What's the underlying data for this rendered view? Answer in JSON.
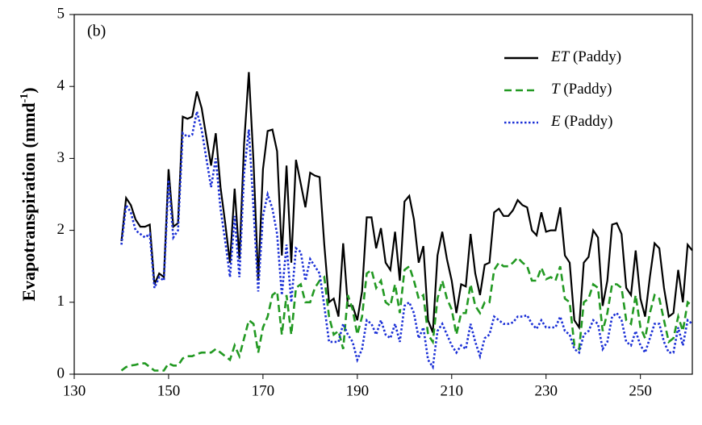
{
  "chart_data": {
    "type": "line",
    "annotation": "(b)",
    "y_label": {
      "text": "Evapotranspiration  (mmd",
      "sup": "-1",
      "end": ")"
    },
    "x": [
      140,
      141,
      142,
      143,
      144,
      145,
      146,
      147,
      148,
      149,
      150,
      151,
      152,
      153,
      154,
      155,
      156,
      157,
      158,
      159,
      160,
      161,
      162,
      163,
      164,
      165,
      166,
      167,
      168,
      169,
      170,
      171,
      172,
      173,
      174,
      175,
      176,
      177,
      178,
      179,
      180,
      181,
      182,
      183,
      184,
      185,
      186,
      187,
      188,
      189,
      190,
      191,
      192,
      193,
      194,
      195,
      196,
      197,
      198,
      199,
      200,
      201,
      202,
      203,
      204,
      205,
      206,
      207,
      208,
      209,
      210,
      211,
      212,
      213,
      214,
      215,
      216,
      217,
      218,
      219,
      220,
      221,
      222,
      223,
      224,
      225,
      226,
      227,
      228,
      229,
      230,
      231,
      232,
      233,
      234,
      235,
      236,
      237,
      238,
      239,
      240,
      241,
      242,
      243,
      244,
      245,
      246,
      247,
      248,
      249,
      250,
      251,
      252,
      253,
      254,
      255,
      256,
      257,
      258,
      259,
      260,
      261
    ],
    "series": [
      {
        "name": "ET (Paddy)",
        "color": "#000000",
        "dash": "solid",
        "values": [
          1.85,
          2.45,
          2.35,
          2.15,
          2.05,
          2.05,
          2.08,
          1.25,
          1.4,
          1.35,
          2.85,
          2.05,
          2.1,
          3.58,
          3.55,
          3.58,
          3.93,
          3.7,
          3.3,
          2.9,
          3.35,
          2.6,
          2.1,
          1.55,
          2.58,
          1.6,
          3.2,
          4.2,
          2.95,
          1.3,
          2.85,
          3.38,
          3.4,
          3.1,
          1.65,
          2.9,
          1.55,
          2.98,
          2.65,
          2.32,
          2.8,
          2.76,
          2.74,
          1.8,
          1.0,
          1.05,
          0.8,
          1.82,
          0.95,
          0.95,
          0.75,
          1.15,
          2.18,
          2.18,
          1.75,
          2.03,
          1.55,
          1.45,
          1.98,
          1.3,
          2.4,
          2.48,
          2.15,
          1.55,
          1.78,
          0.75,
          0.58,
          1.65,
          1.98,
          1.6,
          1.3,
          0.85,
          1.25,
          1.22,
          1.95,
          1.4,
          1.1,
          1.52,
          1.55,
          2.25,
          2.3,
          2.2,
          2.2,
          2.28,
          2.42,
          2.35,
          2.32,
          2.0,
          1.93,
          2.25,
          1.98,
          2.0,
          2.0,
          2.32,
          1.65,
          1.55,
          0.75,
          0.65,
          1.55,
          1.63,
          2.0,
          1.9,
          0.95,
          1.3,
          2.08,
          2.1,
          1.95,
          1.2,
          1.1,
          1.72,
          1.05,
          0.8,
          1.35,
          1.82,
          1.75,
          1.2,
          0.8,
          0.85,
          1.45,
          1.0,
          1.8,
          1.72
        ]
      },
      {
        "name": "T (Paddy)",
        "color": "#229922",
        "dash": "dashed",
        "values": [
          0.05,
          0.1,
          0.12,
          0.13,
          0.15,
          0.15,
          0.1,
          0.05,
          0.05,
          0.05,
          0.15,
          0.12,
          0.12,
          0.22,
          0.25,
          0.25,
          0.28,
          0.3,
          0.3,
          0.3,
          0.35,
          0.3,
          0.25,
          0.2,
          0.4,
          0.25,
          0.5,
          0.75,
          0.7,
          0.3,
          0.65,
          0.8,
          1.1,
          1.15,
          0.55,
          1.1,
          0.55,
          1.2,
          1.25,
          1.0,
          1.0,
          1.2,
          1.3,
          1.35,
          0.8,
          0.55,
          0.6,
          0.35,
          1.1,
          0.9,
          0.55,
          0.8,
          1.4,
          1.45,
          1.2,
          1.3,
          1.0,
          0.95,
          1.25,
          0.85,
          1.45,
          1.5,
          1.3,
          1.05,
          1.1,
          0.55,
          0.45,
          1.05,
          1.3,
          1.05,
          0.9,
          0.55,
          0.85,
          0.85,
          1.25,
          0.95,
          0.85,
          1.0,
          1.0,
          1.45,
          1.55,
          1.5,
          1.5,
          1.55,
          1.62,
          1.55,
          1.5,
          1.3,
          1.3,
          1.48,
          1.32,
          1.35,
          1.3,
          1.5,
          1.05,
          1.0,
          0.4,
          0.35,
          1.0,
          1.05,
          1.25,
          1.2,
          0.6,
          0.85,
          1.25,
          1.25,
          1.2,
          0.75,
          0.7,
          1.1,
          0.65,
          0.5,
          0.85,
          1.1,
          1.05,
          0.75,
          0.45,
          0.5,
          0.8,
          0.6,
          1.0,
          0.95
        ]
      },
      {
        "name": "E (Paddy)",
        "color": "#1a2fd6",
        "dash": "dotted",
        "values": [
          1.8,
          2.35,
          2.25,
          2.0,
          1.95,
          1.9,
          1.95,
          1.2,
          1.35,
          1.3,
          2.7,
          1.9,
          2.0,
          3.35,
          3.3,
          3.33,
          3.65,
          3.4,
          3.0,
          2.6,
          3.0,
          2.3,
          1.85,
          1.35,
          2.2,
          1.35,
          2.8,
          3.4,
          2.3,
          1.15,
          2.2,
          2.5,
          2.3,
          1.95,
          1.1,
          1.8,
          1.0,
          1.75,
          1.7,
          1.3,
          1.6,
          1.5,
          1.4,
          0.95,
          0.45,
          0.45,
          0.45,
          0.7,
          0.55,
          0.45,
          0.2,
          0.35,
          0.75,
          0.7,
          0.55,
          0.75,
          0.55,
          0.5,
          0.7,
          0.45,
          0.95,
          1.0,
          0.85,
          0.5,
          0.65,
          0.2,
          0.1,
          0.6,
          0.7,
          0.55,
          0.4,
          0.3,
          0.4,
          0.35,
          0.7,
          0.45,
          0.25,
          0.5,
          0.55,
          0.8,
          0.75,
          0.7,
          0.7,
          0.72,
          0.8,
          0.8,
          0.82,
          0.7,
          0.63,
          0.75,
          0.65,
          0.65,
          0.65,
          0.8,
          0.6,
          0.55,
          0.35,
          0.3,
          0.55,
          0.6,
          0.75,
          0.7,
          0.35,
          0.45,
          0.8,
          0.85,
          0.75,
          0.45,
          0.4,
          0.6,
          0.4,
          0.3,
          0.5,
          0.7,
          0.7,
          0.45,
          0.3,
          0.3,
          0.65,
          0.4,
          0.75,
          0.7
        ]
      }
    ],
    "xlim": [
      130,
      261
    ],
    "ylim": [
      0,
      5
    ],
    "xticks": [
      130,
      150,
      170,
      190,
      210,
      230,
      250
    ],
    "yticks": [
      0,
      1,
      2,
      3,
      4,
      5
    ],
    "legend": "upper right"
  }
}
